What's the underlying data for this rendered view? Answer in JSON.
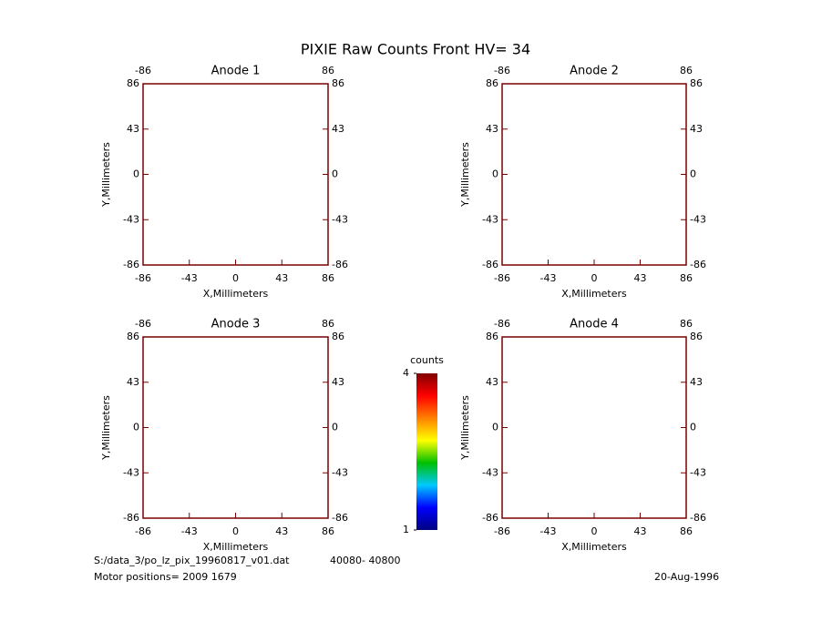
{
  "title": "PIXIE Raw Counts Front HV= 34",
  "chart_data": [
    {
      "type": "heatmap",
      "title": "Anode 1",
      "xlabel": "X,Millimeters",
      "ylabel": "Y,Millimeters",
      "xlim": [
        -86,
        86
      ],
      "ylim": [
        -86,
        86
      ],
      "xticks": [
        -86,
        -43,
        0,
        43,
        86
      ],
      "yticks": [
        -86,
        -43,
        0,
        43,
        86
      ],
      "x2ticks": [
        -86,
        86
      ],
      "y2ticks": [
        -86,
        -43,
        0,
        43,
        86
      ]
    },
    {
      "type": "heatmap",
      "title": "Anode 2",
      "xlabel": "X,Millimeters",
      "ylabel": "Y,Millimeters",
      "xlim": [
        -86,
        86
      ],
      "ylim": [
        -86,
        86
      ],
      "xticks": [
        -86,
        -43,
        0,
        43,
        86
      ],
      "yticks": [
        -86,
        -43,
        0,
        43,
        86
      ],
      "x2ticks": [
        -86,
        86
      ],
      "y2ticks": [
        -86,
        -43,
        0,
        43,
        86
      ]
    },
    {
      "type": "heatmap",
      "title": "Anode 3",
      "xlabel": "X,Millimeters",
      "ylabel": "Y,Millimeters",
      "xlim": [
        -86,
        86
      ],
      "ylim": [
        -86,
        86
      ],
      "xticks": [
        -86,
        -43,
        0,
        43,
        86
      ],
      "yticks": [
        -86,
        -43,
        0,
        43,
        86
      ],
      "x2ticks": [
        -86,
        86
      ],
      "y2ticks": [
        -86,
        -43,
        0,
        43,
        86
      ]
    },
    {
      "type": "heatmap",
      "title": "Anode 4",
      "xlabel": "X,Millimeters",
      "ylabel": "Y,Millimeters",
      "xlim": [
        -86,
        86
      ],
      "ylim": [
        -86,
        86
      ],
      "xticks": [
        -86,
        -43,
        0,
        43,
        86
      ],
      "yticks": [
        -86,
        -43,
        0,
        43,
        86
      ],
      "x2ticks": [
        -86,
        86
      ],
      "y2ticks": [
        -86,
        -43,
        0,
        43,
        86
      ]
    }
  ],
  "colorbar": {
    "label": "counts",
    "lim": [
      1,
      4
    ],
    "ticks": [
      1,
      4
    ],
    "colors": [
      "#000080",
      "#0000ff",
      "#00c8ff",
      "#00c000",
      "#ffff00",
      "#ff8000",
      "#ff0000",
      "#800000"
    ]
  },
  "footer": {
    "file": "S:/data_3/po_lz_pix_19960817_v01.dat",
    "range": "40080- 40800",
    "motor": "Motor positions= 2009 1679",
    "date": "20-Aug-1996"
  }
}
